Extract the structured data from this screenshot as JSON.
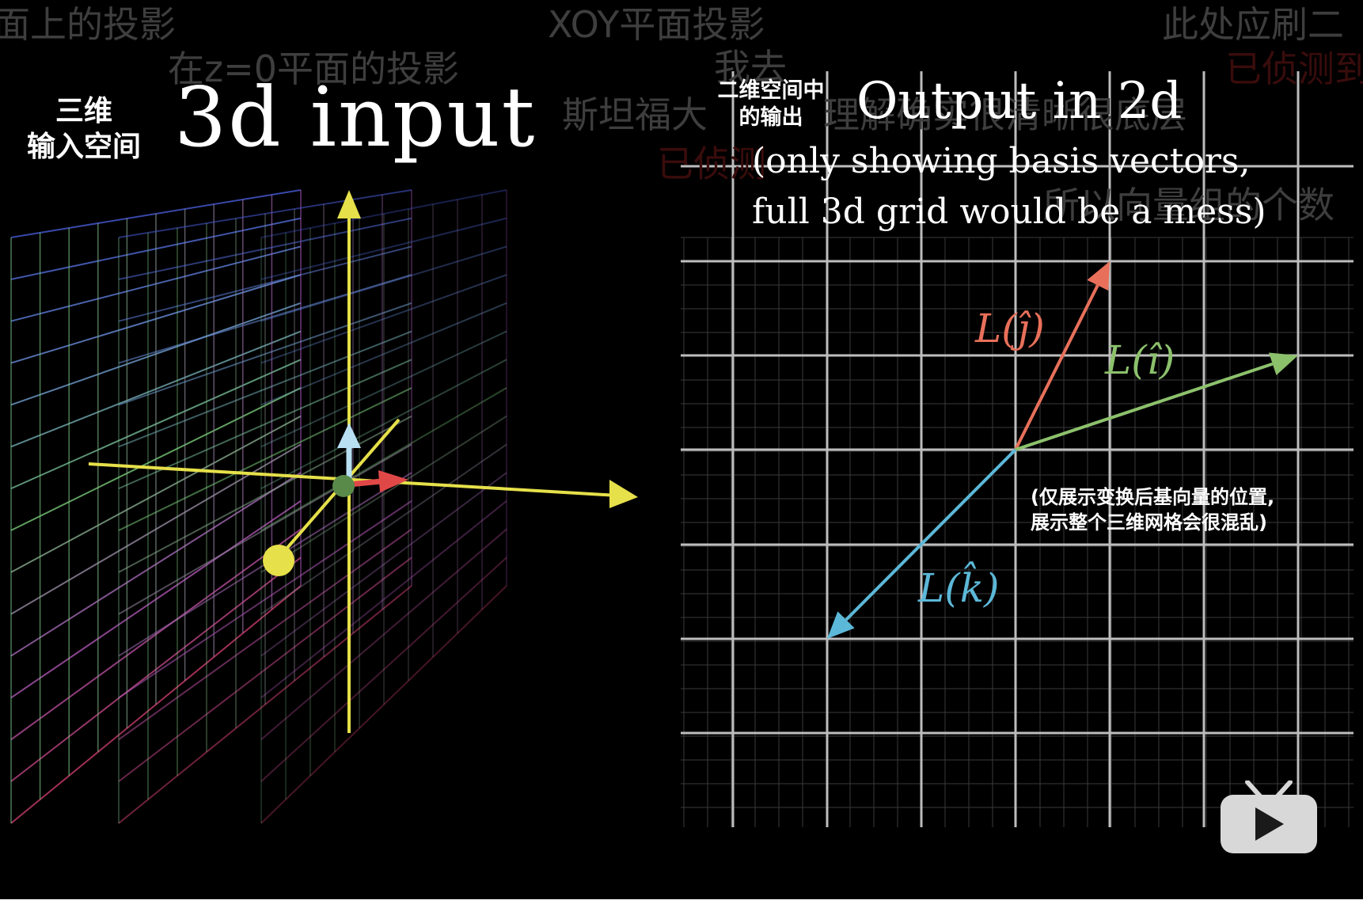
{
  "danmaku": [
    {
      "id": "dm-1",
      "text": "面上的投影",
      "style": "gray"
    },
    {
      "id": "dm-2",
      "text": "XOY平面投影",
      "style": "gray"
    },
    {
      "id": "dm-3",
      "text": "此处应刷二",
      "style": "gray"
    },
    {
      "id": "dm-4",
      "text": "在z=0平面的投影",
      "style": "gray"
    },
    {
      "id": "dm-5",
      "text": "我去",
      "style": "gray"
    },
    {
      "id": "dm-6",
      "text": "已侦测到",
      "style": "red"
    },
    {
      "id": "dm-7",
      "text": "斯坦福大",
      "style": "gray"
    },
    {
      "id": "dm-8",
      "text": "理解确实很清晰很底层",
      "style": "gray"
    },
    {
      "id": "dm-9",
      "text": "已侦测",
      "style": "red"
    },
    {
      "id": "dm-10",
      "text": "所以向量组的个数",
      "style": "gray"
    }
  ],
  "left_panel": {
    "cn_label_line1": "三维",
    "cn_label_line2": "输入空间",
    "title": "3d input"
  },
  "right_panel": {
    "cn_label_line1": "二维空间中",
    "cn_label_line2": "的输出",
    "title": "Output in 2d",
    "note_line1": "(only showing basis vectors,",
    "note_line2": "full 3d grid would be a mess)",
    "cn_note_line1": "(仅展示变换后基向量的位置,",
    "cn_note_line2": "展示整个三维网格会很混乱)",
    "vectors": [
      {
        "name": "L(ĵ)",
        "color": "#e8705a"
      },
      {
        "name": "L(î)",
        "color": "#8cc16c"
      },
      {
        "name": "L(k̂)",
        "color": "#5cb8d8"
      }
    ]
  },
  "player": {
    "play_icon": "bilibili-tv-play-icon"
  },
  "colors": {
    "background": "#000000",
    "axis_yellow": "#e6e04a",
    "grid_white": "#bdbdbd",
    "vector_j": "#e8705a",
    "vector_i": "#8cc16c",
    "vector_k": "#5cb8d8"
  }
}
